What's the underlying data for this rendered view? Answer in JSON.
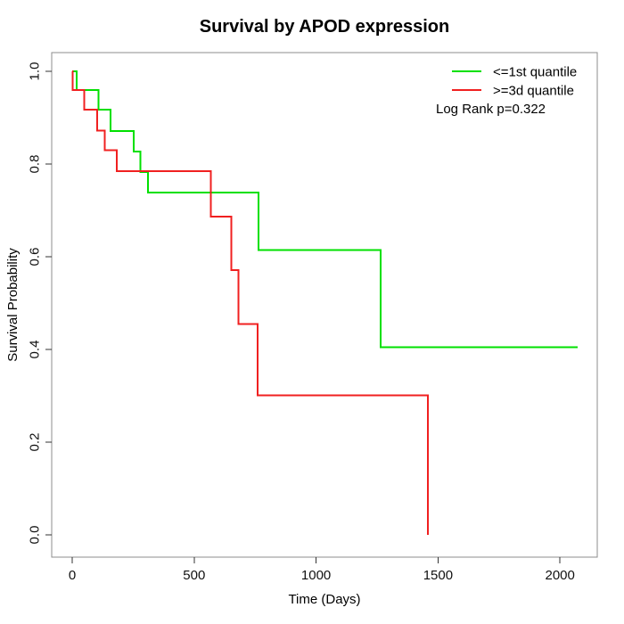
{
  "title": "Survival by APOD expression",
  "chart_data": {
    "type": "line",
    "subtype": "kaplan-meier-step",
    "title": "Survival by APOD expression",
    "xlabel": "Time (Days)",
    "ylabel": "Survival Probability",
    "xlim": [
      0,
      2160
    ],
    "ylim": [
      0.0,
      1.0
    ],
    "xticks": [
      0,
      500,
      1000,
      1500,
      2000
    ],
    "xtick_labels": [
      "0",
      "500",
      "1000",
      "1500",
      "2000"
    ],
    "yticks": [
      0.0,
      0.2,
      0.4,
      0.6,
      0.8,
      1.0
    ],
    "ytick_labels": [
      "0.0",
      "0.2",
      "0.4",
      "0.6",
      "0.8",
      "1.0"
    ],
    "grid": false,
    "legend_position": "top-right",
    "annotation": "Log Rank p=0.322",
    "series": [
      {
        "name": "<=1st quantile",
        "color": "#00e000",
        "steps": [
          [
            0,
            1.0
          ],
          [
            18,
            0.96
          ],
          [
            108,
            0.917
          ],
          [
            157,
            0.871
          ],
          [
            252,
            0.827
          ],
          [
            280,
            0.783
          ],
          [
            310,
            0.738
          ],
          [
            764,
            0.614
          ],
          [
            1264,
            0.405
          ]
        ],
        "end_time": 2073
      },
      {
        "name": ">=3d quantile",
        "color": "#f02020",
        "steps": [
          [
            0,
            1.0
          ],
          [
            2,
            0.96
          ],
          [
            49,
            0.917
          ],
          [
            103,
            0.872
          ],
          [
            134,
            0.83
          ],
          [
            183,
            0.785
          ],
          [
            569,
            0.687
          ],
          [
            652,
            0.571
          ],
          [
            681,
            0.455
          ],
          [
            761,
            0.301
          ],
          [
            1458,
            0.0
          ]
        ],
        "end_time": 1458
      }
    ]
  }
}
